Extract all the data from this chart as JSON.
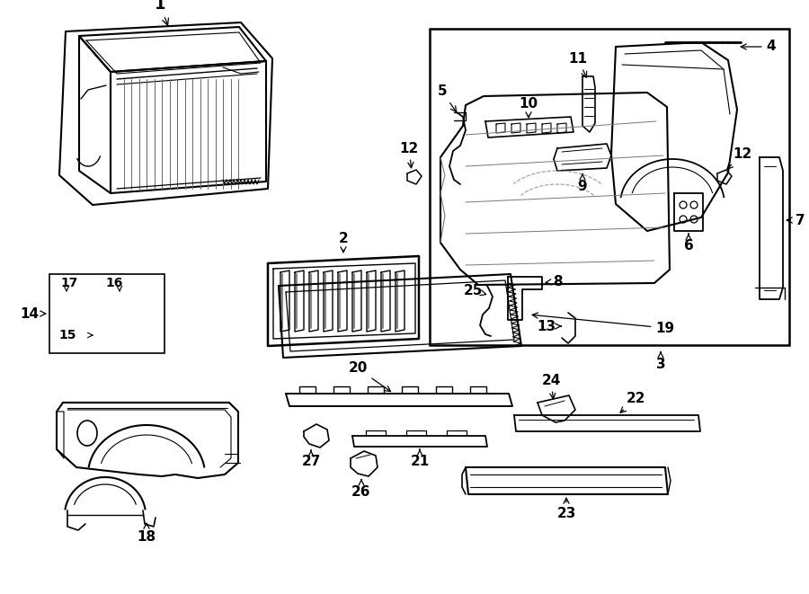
{
  "bg": "#ffffff",
  "lc": "#000000",
  "fig_w": 9.0,
  "fig_h": 6.61,
  "dpi": 100
}
